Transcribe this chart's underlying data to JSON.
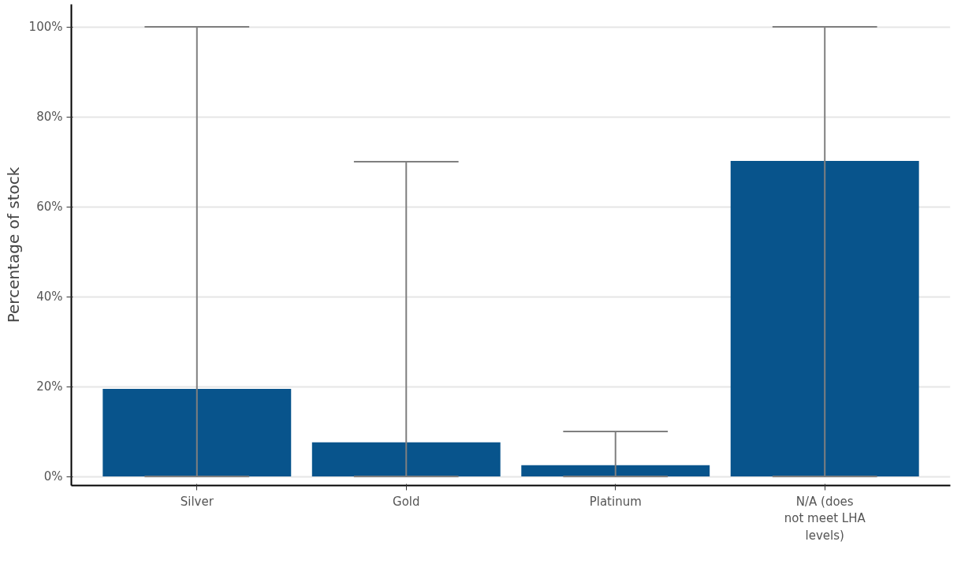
{
  "chart_data": {
    "type": "bar",
    "ylabel": "Percentage of stock",
    "categories": [
      "Silver",
      "Gold",
      "Platinum",
      "N/A (does not meet LHA levels)"
    ],
    "values": [
      19.5,
      7.6,
      2.5,
      70.2
    ],
    "errors": [
      [
        0,
        100
      ],
      [
        0,
        70
      ],
      [
        0,
        10
      ],
      [
        0,
        100
      ]
    ],
    "color": "#08548c",
    "ylim": [
      -2,
      105
    ],
    "yticks": [
      {
        "value": 0,
        "label": "0%"
      },
      {
        "value": 20,
        "label": "20%"
      },
      {
        "value": 40,
        "label": "40%"
      },
      {
        "value": 60,
        "label": "60%"
      },
      {
        "value": 80,
        "label": "80%"
      },
      {
        "value": 100,
        "label": "100%"
      }
    ],
    "grid": "y"
  }
}
